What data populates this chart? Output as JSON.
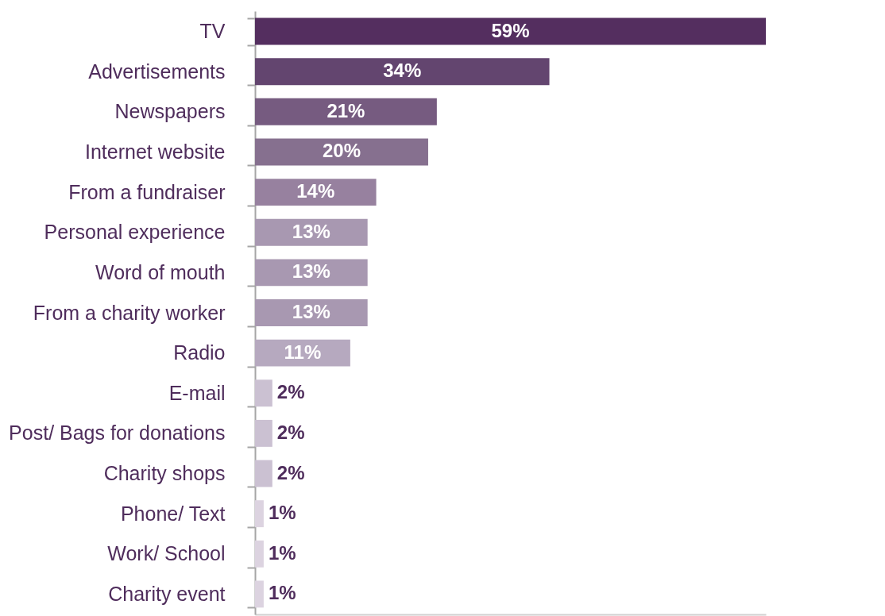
{
  "chart_data": {
    "type": "bar",
    "orientation": "horizontal",
    "categories": [
      "TV",
      "Advertisements",
      "Newspapers",
      "Internet website",
      "From a fundraiser",
      "Personal experience",
      "Word of mouth",
      "From a charity worker",
      "Radio",
      "E-mail",
      "Post/ Bags for donations",
      "Charity shops",
      "Phone/ Text",
      "Work/ School",
      "Charity event"
    ],
    "values": [
      59,
      34,
      21,
      20,
      14,
      13,
      13,
      13,
      11,
      2,
      2,
      2,
      1,
      1,
      1
    ],
    "value_labels": [
      "59%",
      "34%",
      "21%",
      "20%",
      "14%",
      "13%",
      "13%",
      "13%",
      "11%",
      "2%",
      "2%",
      "2%",
      "1%",
      "1%",
      "1%"
    ],
    "colors": [
      "#542e5f",
      "#63456f",
      "#765b80",
      "#86708f",
      "#97819f",
      "#a898b1",
      "#a898b1",
      "#a898b1",
      "#b6a9bf",
      "#cbc1d2",
      "#cbc1d2",
      "#cbc1d2",
      "#dcd3e0",
      "#dcd3e0",
      "#dcd3e0"
    ],
    "tick_labels": "y",
    "grid": false
  }
}
